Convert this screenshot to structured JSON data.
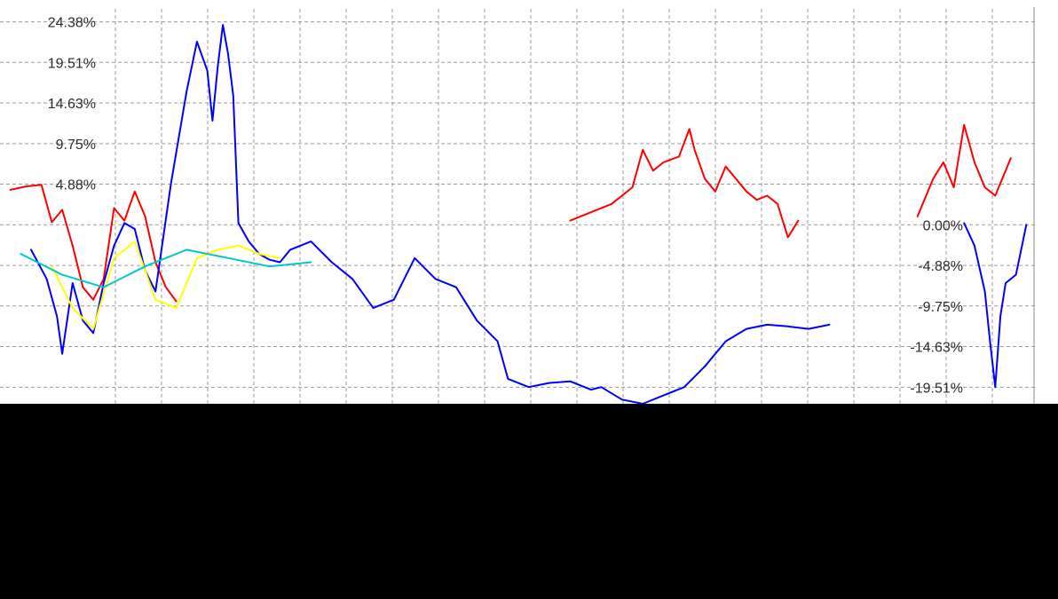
{
  "chart_data": {
    "type": "line",
    "grid": true,
    "ytick_labels_upper": [
      "24.38%",
      "19.51%",
      "14.63%",
      "9.75%",
      "4.88%"
    ],
    "ytick_labels_lower": [
      "0.00%",
      "-4.88%",
      "-9.75%",
      "-14.63%",
      "-19.51%"
    ],
    "ylim": [
      -21.5,
      27
    ],
    "series": [
      {
        "color": "#ff0000",
        "points": [
          [
            0.01,
            4.2
          ],
          [
            0.025,
            4.6
          ],
          [
            0.04,
            4.8
          ],
          [
            0.05,
            0.3
          ],
          [
            0.06,
            1.8
          ],
          [
            0.07,
            -2.5
          ],
          [
            0.08,
            -7.5
          ],
          [
            0.09,
            -9.0
          ],
          [
            0.1,
            -6.5
          ],
          [
            0.11,
            2.0
          ],
          [
            0.12,
            0.5
          ],
          [
            0.13,
            4.0
          ],
          [
            0.14,
            1.0
          ],
          [
            0.15,
            -4.5
          ],
          [
            0.16,
            -7.5
          ],
          [
            0.17,
            -9.2
          ]
        ]
      },
      {
        "color": "#0000ff",
        "points": [
          [
            0.03,
            -3.0
          ],
          [
            0.045,
            -6.5
          ],
          [
            0.055,
            -11.0
          ],
          [
            0.06,
            -15.5
          ],
          [
            0.07,
            -7.0
          ],
          [
            0.08,
            -11.5
          ],
          [
            0.09,
            -13.0
          ],
          [
            0.1,
            -7.0
          ],
          [
            0.11,
            -2.5
          ],
          [
            0.12,
            0.2
          ],
          [
            0.13,
            -0.5
          ],
          [
            0.14,
            -5.5
          ],
          [
            0.15,
            -8.0
          ],
          [
            0.165,
            5.0
          ],
          [
            0.18,
            16.0
          ],
          [
            0.19,
            22.0
          ],
          [
            0.2,
            18.5
          ],
          [
            0.205,
            12.5
          ],
          [
            0.21,
            19.0
          ],
          [
            0.215,
            24.0
          ],
          [
            0.22,
            20.5
          ],
          [
            0.225,
            15.5
          ],
          [
            0.23,
            0.2
          ],
          [
            0.24,
            -2.0
          ],
          [
            0.25,
            -3.5
          ],
          [
            0.26,
            -4.2
          ],
          [
            0.27,
            -4.5
          ],
          [
            0.28,
            -3.0
          ],
          [
            0.3,
            -2.0
          ],
          [
            0.32,
            -4.5
          ],
          [
            0.34,
            -6.5
          ],
          [
            0.36,
            -10.0
          ],
          [
            0.38,
            -9.0
          ],
          [
            0.4,
            -4.0
          ],
          [
            0.42,
            -6.5
          ],
          [
            0.44,
            -7.5
          ],
          [
            0.46,
            -11.5
          ],
          [
            0.48,
            -14.0
          ],
          [
            0.49,
            -18.5
          ],
          [
            0.51,
            -19.5
          ],
          [
            0.53,
            -19.0
          ],
          [
            0.55,
            -18.8
          ],
          [
            0.57,
            -19.8
          ],
          [
            0.58,
            -19.5
          ],
          [
            0.6,
            -21.0
          ],
          [
            0.62,
            -21.5
          ],
          [
            0.64,
            -20.5
          ],
          [
            0.66,
            -19.5
          ],
          [
            0.68,
            -17.0
          ],
          [
            0.7,
            -14.0
          ],
          [
            0.72,
            -12.5
          ],
          [
            0.74,
            -12.0
          ],
          [
            0.76,
            -12.2
          ],
          [
            0.78,
            -12.5
          ],
          [
            0.8,
            -12.0
          ]
        ]
      },
      {
        "color": "#ffff00",
        "points": [
          [
            0.05,
            -5.0
          ],
          [
            0.07,
            -10.0
          ],
          [
            0.09,
            -12.5
          ],
          [
            0.11,
            -4.0
          ],
          [
            0.13,
            -2.0
          ],
          [
            0.15,
            -9.0
          ],
          [
            0.17,
            -10.0
          ],
          [
            0.19,
            -4.0
          ],
          [
            0.21,
            -3.0
          ],
          [
            0.23,
            -2.5
          ],
          [
            0.25,
            -3.5
          ],
          [
            0.27,
            -4.0
          ]
        ]
      },
      {
        "color": "#00c8c8",
        "points": [
          [
            0.02,
            -3.5
          ],
          [
            0.06,
            -6.0
          ],
          [
            0.1,
            -7.5
          ],
          [
            0.14,
            -5.0
          ],
          [
            0.18,
            -3.0
          ],
          [
            0.22,
            -4.0
          ],
          [
            0.26,
            -5.0
          ],
          [
            0.3,
            -4.5
          ]
        ]
      },
      {
        "color": "#ff0000",
        "points": [
          [
            0.55,
            0.5
          ],
          [
            0.57,
            1.5
          ],
          [
            0.59,
            2.5
          ],
          [
            0.61,
            4.5
          ],
          [
            0.62,
            9.0
          ],
          [
            0.63,
            6.5
          ],
          [
            0.64,
            7.5
          ],
          [
            0.655,
            8.2
          ],
          [
            0.665,
            11.5
          ],
          [
            0.67,
            9.0
          ],
          [
            0.68,
            5.5
          ],
          [
            0.69,
            4.0
          ],
          [
            0.7,
            7.0
          ],
          [
            0.71,
            5.5
          ],
          [
            0.72,
            4.0
          ],
          [
            0.73,
            3.0
          ],
          [
            0.74,
            3.5
          ],
          [
            0.75,
            2.5
          ],
          [
            0.76,
            -1.5
          ],
          [
            0.77,
            0.5
          ]
        ]
      },
      {
        "color": "#ff0000",
        "points": [
          [
            0.885,
            1.0
          ],
          [
            0.9,
            5.5
          ],
          [
            0.91,
            7.5
          ],
          [
            0.92,
            4.5
          ],
          [
            0.93,
            12.0
          ],
          [
            0.94,
            7.5
          ],
          [
            0.95,
            4.5
          ],
          [
            0.96,
            3.5
          ],
          [
            0.97,
            6.5
          ],
          [
            0.975,
            8.0
          ]
        ]
      },
      {
        "color": "#0000ff",
        "points": [
          [
            0.93,
            0.2
          ],
          [
            0.94,
            -2.5
          ],
          [
            0.95,
            -8.0
          ],
          [
            0.955,
            -14.0
          ],
          [
            0.96,
            -19.5
          ],
          [
            0.965,
            -11.0
          ],
          [
            0.97,
            -7.0
          ],
          [
            0.98,
            -6.0
          ],
          [
            0.985,
            -3.0
          ],
          [
            0.99,
            0.0
          ]
        ]
      }
    ]
  }
}
